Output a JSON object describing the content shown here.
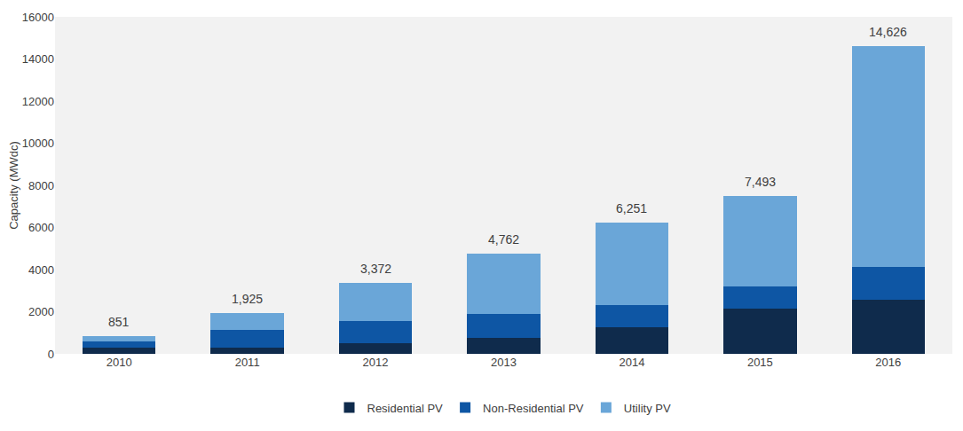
{
  "chart_data": {
    "type": "bar",
    "stacked": true,
    "y_label": "Capacity (MWdc)",
    "categories": [
      "2010",
      "2011",
      "2012",
      "2013",
      "2014",
      "2015",
      "2016"
    ],
    "series": [
      {
        "name": "Residential PV",
        "color": "#0f2b4c",
        "values": [
          280,
          300,
          490,
          770,
          1250,
          2150,
          2550
        ]
      },
      {
        "name": "Non-Residential PV",
        "color": "#0e56a4",
        "values": [
          320,
          830,
          1050,
          1130,
          1060,
          1050,
          1580
        ]
      },
      {
        "name": "Utility PV",
        "color": "#6aa6d8",
        "values": [
          251,
          795,
          1832,
          2862,
          3941,
          4293,
          10496
        ]
      }
    ],
    "totals": [
      851,
      1925,
      3372,
      4762,
      6251,
      7493,
      14626
    ],
    "total_labels": [
      "851",
      "1,925",
      "3,372",
      "4,762",
      "6,251",
      "7,493",
      "14,626"
    ],
    "ylim": [
      0,
      16000
    ],
    "yticks": [
      0,
      2000,
      4000,
      6000,
      8000,
      10000,
      12000,
      14000,
      16000
    ],
    "grid": false,
    "legend": "bottom"
  }
}
